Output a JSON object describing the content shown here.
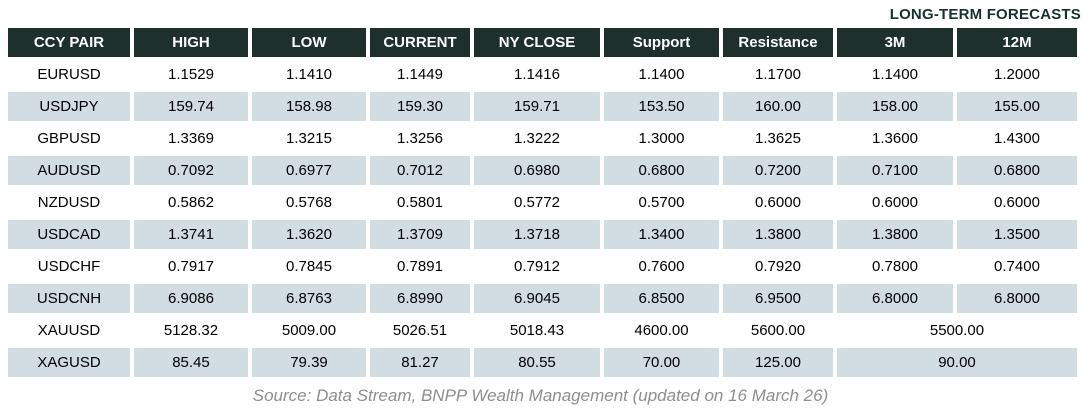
{
  "title": "LONG-TERM FORECASTS",
  "source_note": "Source: Data Stream, BNPP Wealth Management (updated on 16 March 26)",
  "colors": {
    "header_bg": "#1e302c",
    "header_text": "#ffffff",
    "row_alt_bg": "#d2dce3",
    "title_color": "#16322e",
    "source_color": "#8e8e8e"
  },
  "table": {
    "columns": [
      "CCY PAIR",
      "HIGH",
      "LOW",
      "CURRENT",
      "NY CLOSE",
      "Support",
      "Resistance",
      "3M",
      "12M"
    ],
    "rows": [
      {
        "pair": "EURUSD",
        "values": [
          "1.1529",
          "1.1410",
          "1.1449",
          "1.1416",
          "1.1400",
          "1.1700"
        ],
        "merged": false,
        "forecast_3m": "1.1400",
        "forecast_12m": "1.2000"
      },
      {
        "pair": "USDJPY",
        "values": [
          "159.74",
          "158.98",
          "159.30",
          "159.71",
          "153.50",
          "160.00"
        ],
        "merged": false,
        "forecast_3m": "158.00",
        "forecast_12m": "155.00"
      },
      {
        "pair": "GBPUSD",
        "values": [
          "1.3369",
          "1.3215",
          "1.3256",
          "1.3222",
          "1.3000",
          "1.3625"
        ],
        "merged": false,
        "forecast_3m": "1.3600",
        "forecast_12m": "1.4300"
      },
      {
        "pair": "AUDUSD",
        "values": [
          "0.7092",
          "0.6977",
          "0.7012",
          "0.6980",
          "0.6800",
          "0.7200"
        ],
        "merged": false,
        "forecast_3m": "0.7100",
        "forecast_12m": "0.6800"
      },
      {
        "pair": "NZDUSD",
        "values": [
          "0.5862",
          "0.5768",
          "0.5801",
          "0.5772",
          "0.5700",
          "0.6000"
        ],
        "merged": false,
        "forecast_3m": "0.6000",
        "forecast_12m": "0.6000"
      },
      {
        "pair": "USDCAD",
        "values": [
          "1.3741",
          "1.3620",
          "1.3709",
          "1.3718",
          "1.3400",
          "1.3800"
        ],
        "merged": false,
        "forecast_3m": "1.3800",
        "forecast_12m": "1.3500"
      },
      {
        "pair": "USDCHF",
        "values": [
          "0.7917",
          "0.7845",
          "0.7891",
          "0.7912",
          "0.7600",
          "0.7920"
        ],
        "merged": false,
        "forecast_3m": "0.7800",
        "forecast_12m": "0.7400"
      },
      {
        "pair": "USDCNH",
        "values": [
          "6.9086",
          "6.8763",
          "6.8990",
          "6.9045",
          "6.8500",
          "6.9500"
        ],
        "merged": false,
        "forecast_3m": "6.8000",
        "forecast_12m": "6.8000"
      },
      {
        "pair": "XAUUSD",
        "values": [
          "5128.32",
          "5009.00",
          "5026.51",
          "5018.43",
          "4600.00",
          "5600.00"
        ],
        "merged": true,
        "forecast_merged": "5500.00"
      },
      {
        "pair": "XAGUSD",
        "values": [
          "85.45",
          "79.39",
          "81.27",
          "80.55",
          "70.00",
          "125.00"
        ],
        "merged": true,
        "forecast_merged": "90.00"
      }
    ]
  },
  "chart_data": {
    "type": "table",
    "title": "LONG-TERM FORECASTS",
    "columns": [
      "CCY PAIR",
      "HIGH",
      "LOW",
      "CURRENT",
      "NY CLOSE",
      "Support",
      "Resistance",
      "3M",
      "12M"
    ],
    "rows": [
      [
        "EURUSD",
        "1.1529",
        "1.1410",
        "1.1449",
        "1.1416",
        "1.1400",
        "1.1700",
        "1.1400",
        "1.2000"
      ],
      [
        "USDJPY",
        "159.74",
        "158.98",
        "159.30",
        "159.71",
        "153.50",
        "160.00",
        "158.00",
        "155.00"
      ],
      [
        "GBPUSD",
        "1.3369",
        "1.3215",
        "1.3256",
        "1.3222",
        "1.3000",
        "1.3625",
        "1.3600",
        "1.4300"
      ],
      [
        "AUDUSD",
        "0.7092",
        "0.6977",
        "0.7012",
        "0.6980",
        "0.6800",
        "0.7200",
        "0.7100",
        "0.6800"
      ],
      [
        "NZDUSD",
        "0.5862",
        "0.5768",
        "0.5801",
        "0.5772",
        "0.5700",
        "0.6000",
        "0.6000",
        "0.6000"
      ],
      [
        "USDCAD",
        "1.3741",
        "1.3620",
        "1.3709",
        "1.3718",
        "1.3400",
        "1.3800",
        "1.3800",
        "1.3500"
      ],
      [
        "USDCHF",
        "0.7917",
        "0.7845",
        "0.7891",
        "0.7912",
        "0.7600",
        "0.7920",
        "0.7800",
        "0.7400"
      ],
      [
        "USDCNH",
        "6.9086",
        "6.8763",
        "6.8990",
        "6.9045",
        "6.8500",
        "6.9500",
        "6.8000",
        "6.8000"
      ],
      [
        "XAUUSD",
        "5128.32",
        "5009.00",
        "5026.51",
        "5018.43",
        "4600.00",
        "5600.00",
        "5500.00",
        "5500.00"
      ],
      [
        "XAGUSD",
        "85.45",
        "79.39",
        "81.27",
        "80.55",
        "70.00",
        "125.00",
        "90.00",
        "90.00"
      ]
    ],
    "notes": "XAUUSD and XAGUSD rows have a single merged forecast cell spanning the 3M and 12M columns (5500.00 and 90.00 respectively). Rows alternate white and light blue-gray shading.",
    "source": "Source: Data Stream, BNPP Wealth Management (updated on 16 March 26)"
  }
}
